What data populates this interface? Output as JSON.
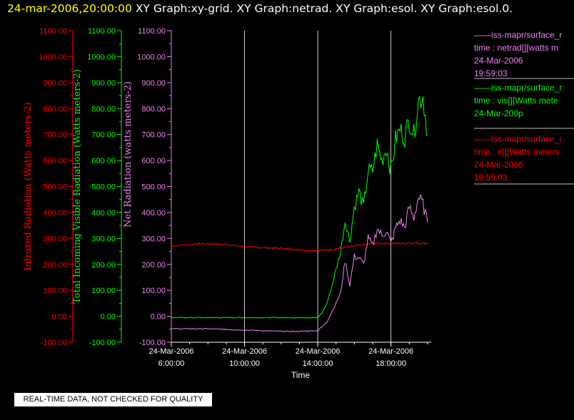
{
  "header": {
    "datetime": "24-mar-2006,20:00:00",
    "graph_list": "XY Graph:xy-grid.  XY Graph:netrad.  XY Graph:esol.  XY Graph:esol.0."
  },
  "colors": {
    "infrared": "#ff0000",
    "visible": "#00ff00",
    "net": "#ee82ee",
    "background": "#000000",
    "axes": "#ffffff",
    "header_date": "#ffff00"
  },
  "legend": [
    {
      "source": "——iss-mapr/surface_r",
      "field": "time : netrad[][watts m",
      "date": "24-Mar-2006",
      "time": "19:59:03",
      "color": "#ee82ee"
    },
    {
      "source": "——iss-mapr/surface_r",
      "field": "time : vis[][Watts mete",
      "date": "24-Mar-200p",
      "time": "",
      "color": "#00ff00"
    },
    {
      "source": "——iss-mapr/surface_r",
      "field": "time : ir[][Watts meters",
      "date": "24-Mar-2006",
      "time": "19:59:03",
      "color": "#ff0000"
    }
  ],
  "footer": {
    "notice": "REAL-TIME DATA, NOT CHECKED FOR QUALITY"
  },
  "chart_data": {
    "type": "line",
    "xlabel": "Time",
    "x_tick_labels": [
      {
        "date": "24-Mar-2006",
        "time": "6:00:00",
        "hour": 6
      },
      {
        "date": "24-Mar-2006",
        "time": "10:00:00",
        "hour": 10
      },
      {
        "date": "24-Mar-2006",
        "time": "14:00:00",
        "hour": 14
      },
      {
        "date": "24-Mar-2006",
        "time": "18:00:00",
        "hour": 18
      }
    ],
    "xlim_hours": [
      6,
      20.2
    ],
    "ylim": [
      -100,
      1100
    ],
    "y_tick_labels": [
      "1100.00",
      "1000.00",
      "900.00",
      "800.00",
      "700.00",
      "600.00",
      "500.00",
      "400.00",
      "300.00",
      "200.00",
      "100.00",
      "0.00",
      "-100.00"
    ],
    "y_axes": [
      {
        "label": "Infrared Radiation (Watts meters-2)",
        "color": "#ff0000"
      },
      {
        "label": "Total Incoming Visible Radiation (Watts meters-2)",
        "color": "#00ff00"
      },
      {
        "label": "Net Radiation (watts meters-2)",
        "color": "#ee82ee"
      }
    ],
    "grid": "vertical at major x ticks",
    "series": [
      {
        "name": "ir",
        "color": "#ff0000",
        "x": [
          6,
          7,
          8,
          9,
          10,
          11,
          12,
          13,
          13.5,
          14,
          14.5,
          15,
          15.5,
          16,
          16.5,
          17,
          17.5,
          18,
          18.5,
          19,
          19.5,
          20
        ],
        "y": [
          270,
          277,
          280,
          276,
          268,
          264,
          262,
          256,
          254,
          254,
          255,
          260,
          265,
          270,
          275,
          280,
          280,
          282,
          280,
          283,
          282,
          280
        ]
      },
      {
        "name": "vis",
        "color": "#00ff00",
        "x": [
          6,
          8,
          10,
          12,
          13,
          14,
          14.25,
          14.5,
          14.75,
          15,
          15.25,
          15.5,
          15.75,
          16,
          16.25,
          16.5,
          16.75,
          17,
          17.25,
          17.5,
          17.75,
          18,
          18.25,
          18.5,
          18.75,
          19,
          19.25,
          19.5,
          19.75,
          20
        ],
        "y": [
          -5,
          -5,
          -5,
          -5,
          -5,
          -5,
          15,
          50,
          110,
          180,
          250,
          370,
          290,
          420,
          480,
          420,
          560,
          560,
          660,
          600,
          650,
          560,
          680,
          720,
          690,
          760,
          700,
          830,
          850,
          700
        ]
      },
      {
        "name": "netrad",
        "color": "#ee82ee",
        "x": [
          6,
          8,
          10,
          12,
          13,
          14,
          14.25,
          14.5,
          14.75,
          15,
          15.25,
          15.5,
          15.75,
          16,
          16.25,
          16.5,
          16.75,
          17,
          17.25,
          17.5,
          17.75,
          18,
          18.25,
          18.5,
          18.75,
          19,
          19.25,
          19.5,
          19.75,
          20
        ],
        "y": [
          -48,
          -48,
          -53,
          -58,
          -58,
          -55,
          -40,
          -20,
          15,
          50,
          90,
          215,
          120,
          230,
          225,
          200,
          300,
          270,
          340,
          310,
          330,
          280,
          340,
          370,
          340,
          420,
          380,
          460,
          430,
          360
        ]
      }
    ]
  }
}
